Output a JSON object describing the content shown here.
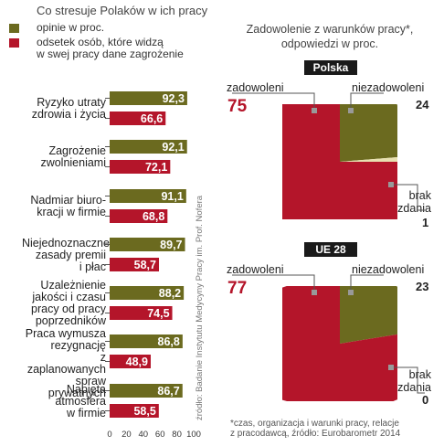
{
  "colors": {
    "olive": "#6b6a1f",
    "red": "#b4152a",
    "olive_light": "#8a8a3a"
  },
  "left": {
    "title": "Co stresuje Polaków w ich pracy",
    "legend": [
      {
        "label": "opinie  w proc.",
        "color": "#6b6a1f"
      },
      {
        "label_lines": [
          "odsetek osób, które widzą",
          "w swej pracy dane zagrożenie"
        ],
        "color": "#b4152a"
      }
    ],
    "source": "źródło: Badanie Instytutu Medycyny Pracy im. Prof. Nofera"
  },
  "right": {
    "title_lines": [
      "Zadowolenie z warunków pracy*,",
      "odpowiedzi w proc."
    ],
    "footnote_lines": [
      "*czas, organizacja i warunki pracy, relacje",
      "z pracodawcą, źródło: Eurobarometr 2014"
    ],
    "pies": [
      {
        "region": "Polska",
        "satisfied_label": "zadowoleni",
        "dissatisfied_label": "niezadowoleni",
        "no_answer_lines": [
          "brak",
          "zdania"
        ],
        "satisfied": 75,
        "dissatisfied": 24,
        "no_answer": 1
      },
      {
        "region": "UE 28",
        "satisfied_label": "zadowoleni",
        "dissatisfied_label": "niezadowoleni",
        "no_answer_lines": [
          "brak",
          "zdania"
        ],
        "satisfied": 77,
        "dissatisfied": 23,
        "no_answer": 0
      }
    ]
  },
  "chart_data": [
    {
      "type": "bar",
      "title": "Co stresuje Polaków w ich pracy",
      "categories": [
        [
          "Ryzyko utraty",
          "zdrowia i życia"
        ],
        [
          "Zagrożenie",
          "zwolnieniami"
        ],
        [
          "Nadmiar biuro-",
          "kracji w firmie"
        ],
        [
          "Niejednoznaczne",
          "zasady premii",
          "i płac"
        ],
        [
          "Uzależnienie",
          "jakości i czasu",
          "pracy od pracy",
          "poprzedników"
        ],
        [
          "Praca wymusza",
          "rezygnację",
          "z zaplanowanych",
          "spraw prywatnych"
        ],
        [
          "Napięta",
          "atmosfera",
          "w firmie"
        ]
      ],
      "series": [
        {
          "name": "opinie  w proc.",
          "values": [
            92.3,
            92.1,
            91.1,
            89.7,
            88.2,
            86.8,
            86.7
          ],
          "labels": [
            "92,3",
            "92,1",
            "91,1",
            "89,7",
            "88,2",
            "86,8",
            "86,7"
          ]
        },
        {
          "name": "odsetek osób, które widzą w swej pracy dane zagrożenie",
          "values": [
            66.6,
            72.1,
            68.8,
            58.7,
            74.5,
            48.9,
            58.5
          ],
          "labels": [
            "66,6",
            "72,1",
            "68,8",
            "58,7",
            "74,5",
            "48,9",
            "58,5"
          ]
        }
      ],
      "xticks": [
        "0",
        "20",
        "40",
        "60",
        "80",
        "100"
      ],
      "xlim": [
        0,
        100
      ]
    },
    {
      "type": "pie",
      "title": "Polska",
      "categories": [
        "zadowoleni",
        "niezadowoleni",
        "brak zdania"
      ],
      "values": [
        75,
        24,
        1
      ]
    },
    {
      "type": "pie",
      "title": "UE 28",
      "categories": [
        "zadowoleni",
        "niezadowoleni",
        "brak zdania"
      ],
      "values": [
        77,
        23,
        0
      ]
    }
  ]
}
